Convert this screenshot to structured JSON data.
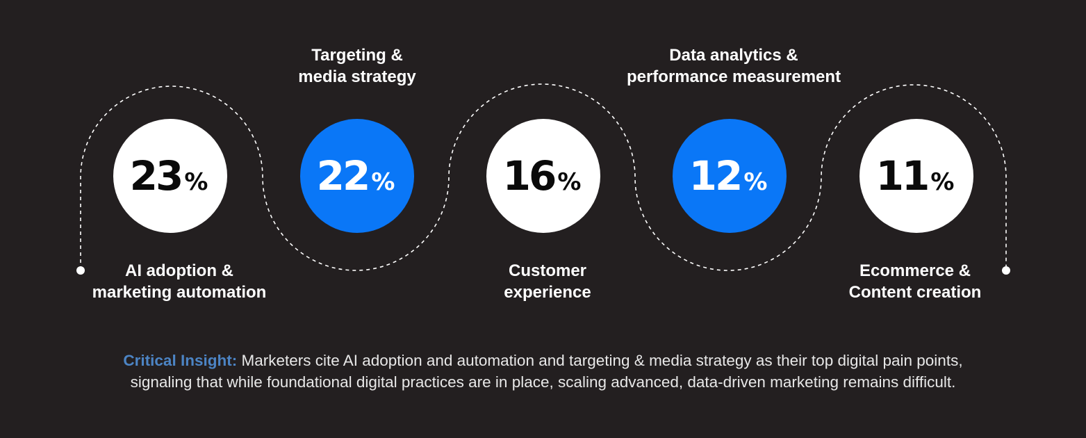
{
  "items": [
    {
      "value": "23",
      "unit": "%",
      "label": [
        "AI adoption &",
        "marketing automation"
      ]
    },
    {
      "value": "22",
      "unit": "%",
      "label": [
        "Targeting &",
        "media strategy"
      ]
    },
    {
      "value": "16",
      "unit": "%",
      "label": [
        "Customer",
        "experience"
      ]
    },
    {
      "value": "12",
      "unit": "%",
      "label": [
        "Data analytics &",
        "performance measurement"
      ]
    },
    {
      "value": "11",
      "unit": "%",
      "label": [
        "Ecommerce &",
        "Content creation"
      ]
    }
  ],
  "insight": {
    "label": "Critical Insight:",
    "line1": "Marketers cite AI adoption and automation and targeting & media strategy as their top digital pain points,",
    "line2": "signaling that while foundational digital practices are in place, scaling advanced, data-driven marketing remains difficult."
  },
  "colors": {
    "background": "#231f20",
    "circle_white": "#ffffff",
    "circle_blue": "#0a77f7",
    "insight_label": "#4c84c4",
    "text": "#ffffff",
    "dashed_line": "#ffffff"
  }
}
